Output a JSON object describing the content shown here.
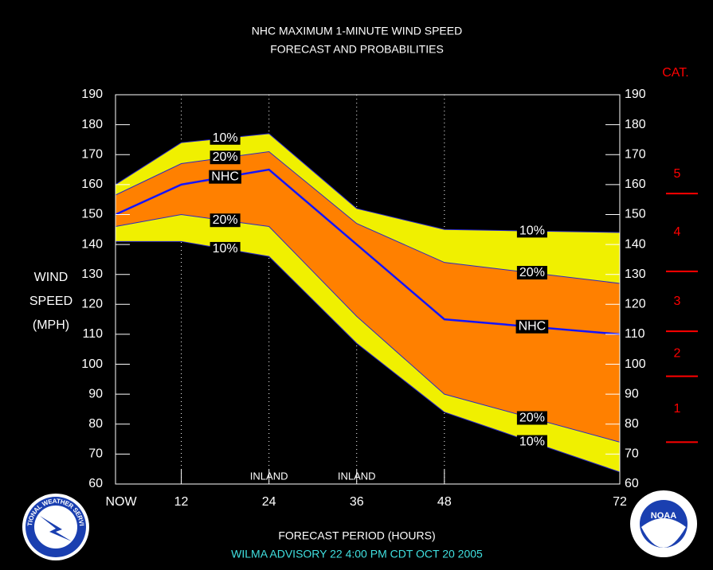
{
  "chart_data": {
    "type": "line",
    "title": [
      "NHC MAXIMUM 1-MINUTE WIND SPEED",
      "FORECAST AND PROBABILITIES"
    ],
    "ylabel": [
      "WIND",
      "SPEED",
      "(MPH)"
    ],
    "xlabel": "FORECAST PERIOD (HOURS)",
    "subtitle": "WILMA   ADVISORY  22  4:00  PM  CDT  OCT  20  2005",
    "x": [
      3,
      12,
      24,
      36,
      48,
      72
    ],
    "xlim": [
      3,
      72
    ],
    "xticks": [
      {
        "value": 3,
        "label": "NOW"
      },
      12,
      24,
      36,
      48,
      72
    ],
    "ylim": [
      60,
      190
    ],
    "yticks": [
      60,
      70,
      80,
      90,
      100,
      110,
      120,
      130,
      140,
      150,
      160,
      170,
      180,
      190
    ],
    "grid": true,
    "line_color": "#2828c8",
    "series": [
      {
        "name": "10%",
        "color": "#f0f000",
        "values": [
          160,
          174,
          177,
          152,
          145,
          144
        ]
      },
      {
        "name": "20%",
        "color": "#ff8000",
        "values": [
          156.5,
          167,
          171,
          147,
          134,
          127
        ]
      },
      {
        "name": "NHC",
        "color": "#1414ff",
        "values": [
          150,
          160,
          165,
          140,
          115,
          110
        ]
      },
      {
        "name": "20%",
        "color": "#ff8000",
        "values": [
          146,
          150,
          146,
          116,
          90,
          74
        ]
      },
      {
        "name": "10%",
        "color": "#f0f000",
        "values": [
          141,
          141,
          136,
          107,
          84,
          64
        ]
      }
    ],
    "annotations": [
      {
        "text": "INLAND",
        "x": 24
      },
      {
        "text": "INLAND",
        "x": 36
      }
    ],
    "category_axis": {
      "title": "CAT.",
      "labels": [
        1,
        2,
        3,
        4,
        5
      ],
      "thresholds": [
        74,
        96,
        111,
        131,
        157
      ],
      "color": "#ff0000"
    },
    "logos": [
      "NATIONAL WEATHER SERVICE",
      "NOAA"
    ]
  }
}
